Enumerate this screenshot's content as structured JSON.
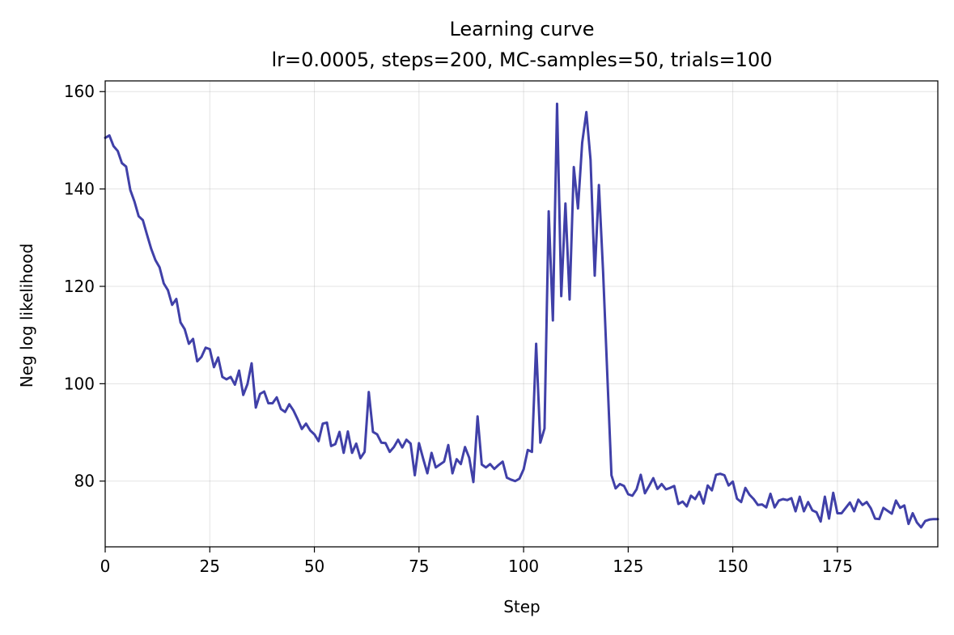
{
  "chart_data": {
    "type": "line",
    "title": "Learning curve",
    "subtitle": "lr=0.0005, steps=200, MC-samples=50, trials=100",
    "xlabel": "Step",
    "ylabel": "Neg log likelihood",
    "xlim": [
      0,
      199
    ],
    "ylim": [
      66.5,
      162.2
    ],
    "xticks": [
      0,
      25,
      50,
      75,
      100,
      125,
      150,
      175
    ],
    "yticks": [
      80,
      100,
      120,
      140,
      160
    ],
    "grid": true,
    "line_color": "#4040a8",
    "series": [
      {
        "x": [
          0,
          1,
          2,
          3,
          4,
          5,
          6,
          7,
          8,
          9,
          10,
          11,
          12,
          13,
          14,
          15,
          16,
          17,
          18,
          19,
          20,
          21,
          22,
          23,
          24,
          25,
          26,
          27,
          28,
          29,
          30,
          31,
          32,
          33,
          34,
          35,
          36,
          37,
          38,
          39,
          40,
          41,
          42,
          43,
          44,
          45,
          46,
          47,
          48,
          49,
          50,
          51,
          52,
          53,
          54,
          55,
          56,
          57,
          58,
          59,
          60,
          61,
          62,
          63,
          64,
          65,
          66,
          67,
          68,
          69,
          70,
          71,
          72,
          73,
          74,
          75,
          76,
          77,
          78,
          79,
          80,
          81,
          82,
          83,
          84,
          85,
          86,
          87,
          88,
          89,
          90,
          91,
          92,
          93,
          94,
          95,
          96,
          97,
          98,
          99,
          100,
          101,
          102,
          103,
          104,
          105,
          106,
          107,
          108,
          109,
          110,
          111,
          112,
          113,
          114,
          115,
          116,
          117,
          118,
          119,
          120,
          121,
          122,
          123,
          124,
          125,
          126,
          127,
          128,
          129,
          130,
          131,
          132,
          133,
          134,
          135,
          136,
          137,
          138,
          139,
          140,
          141,
          142,
          143,
          144,
          145,
          146,
          147,
          148,
          149,
          150,
          151,
          152,
          153,
          154,
          155,
          156,
          157,
          158,
          159,
          160,
          161,
          162,
          163,
          164,
          165,
          166,
          167,
          168,
          169,
          170,
          171,
          172,
          173,
          174,
          175,
          176,
          177,
          178,
          179,
          180,
          181,
          182,
          183,
          184,
          185,
          186,
          187,
          188,
          189,
          190,
          191,
          192,
          193,
          194,
          195,
          196,
          197,
          198,
          199
        ],
        "values": [
          150.5,
          151,
          148.8,
          147.8,
          145.3,
          144.6,
          139.8,
          137.4,
          134.4,
          133.6,
          130.6,
          127.7,
          125.4,
          123.9,
          120.6,
          119.2,
          116.2,
          117.4,
          112.6,
          111.2,
          108.2,
          109.2,
          104.6,
          105.5,
          107.4,
          107.1,
          103.4,
          105.4,
          101.4,
          100.9,
          101.4,
          99.8,
          102.7,
          97.7,
          99.9,
          104.2,
          95.1,
          97.9,
          98.4,
          96,
          96,
          97.2,
          94.8,
          94.2,
          95.8,
          94.5,
          92.7,
          90.7,
          91.8,
          90.4,
          89.6,
          88.2,
          91.8,
          92,
          87.2,
          87.6,
          90.1,
          85.8,
          90.2,
          85.8,
          87.7,
          84.7,
          86,
          98.3,
          90.1,
          89.6,
          87.9,
          87.8,
          86,
          87,
          88.5,
          86.9,
          88.5,
          87.7,
          81.2,
          87.8,
          84.6,
          81.6,
          85.8,
          82.8,
          83.4,
          84,
          87.4,
          81.6,
          84.5,
          83.5,
          87,
          84.8,
          79.8,
          93.3,
          83.4,
          82.8,
          83.5,
          82.5,
          83.3,
          84,
          80.7,
          80.3,
          80,
          80.5,
          82.4,
          86.4,
          86,
          108.2,
          87.9,
          90.8,
          135.4,
          113,
          157.5,
          118,
          137,
          117.3,
          144.5,
          136,
          149.5,
          155.8,
          146,
          122.2,
          140.8,
          123,
          102,
          81.2,
          78.5,
          79.4,
          79,
          77.3,
          77,
          78.3,
          81.3,
          77.5,
          79,
          80.6,
          78.4,
          79.4,
          78.3,
          78.6,
          79,
          75.3,
          75.8,
          74.8,
          77,
          76.3,
          77.8,
          75.4,
          79.1,
          78.1,
          81.3,
          81.5,
          81.2,
          79.1,
          79.9,
          76.4,
          75.7,
          78.6,
          77.2,
          76.3,
          75.1,
          75.2,
          74.6,
          77.4,
          74.6,
          76,
          76.3,
          76.1,
          76.5,
          73.8,
          76.8,
          73.8,
          75.7,
          74,
          73.6,
          71.7,
          76.8,
          72.3,
          77.6,
          73.4,
          73.4,
          74.5,
          75.6,
          73.8,
          76.2,
          75.1,
          75.7,
          74.4,
          72.3,
          72.2,
          74.5,
          73.9,
          73.3,
          76,
          74.5,
          75,
          71.2,
          73.4,
          71.5,
          70.5,
          71.8,
          72.1,
          72.2,
          72.2
        ]
      }
    ]
  }
}
